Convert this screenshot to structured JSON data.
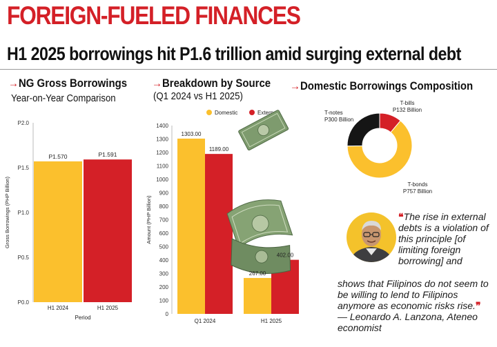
{
  "header": {
    "title": "FOREIGN-FUELED FINANCES",
    "subtitle": "H1 2025 borrowings hit P1.6 trillion amid surging external debt"
  },
  "colors": {
    "accent": "#d42027",
    "domestic": "#fbc02d",
    "external": "#d42027",
    "dark": "#151515"
  },
  "chart_data": [
    {
      "type": "bar",
      "title": "NG Gross Borrowings",
      "subtitle": "Year-on-Year Comparison",
      "arrow": "→",
      "categories": [
        "H1 2024",
        "H1 2025"
      ],
      "values": [
        1.57,
        1.591
      ],
      "data_labels": [
        "P1.570",
        "P1.591"
      ],
      "bar_colors": [
        "#fbc02d",
        "#d42027"
      ],
      "xlabel": "Period",
      "ylabel": "Gross Borrowings (PHP Billion)",
      "ylim": [
        0,
        2.0
      ],
      "yticks": [
        0,
        0.5,
        1.0,
        1.5,
        2.0
      ],
      "ytick_labels": [
        "P0.0",
        "P0.5",
        "P1.0",
        "P1.5",
        "P2.0"
      ]
    },
    {
      "type": "bar",
      "title": "Breakdown by Source",
      "subtitle": "(Q1 2024 vs H1 2025)",
      "arrow": "→",
      "categories": [
        "Q1 2024",
        "H1 2025"
      ],
      "series": [
        {
          "name": "Domestic",
          "values": [
            1303,
            267
          ],
          "labels": [
            "1303.00",
            "267.00"
          ]
        },
        {
          "name": "External",
          "values": [
            1189,
            402
          ],
          "labels": [
            "1189.00",
            "402.00"
          ]
        }
      ],
      "ylabel": "Amount (PHP Billion)",
      "ylim": [
        0,
        1400
      ],
      "yticks": [
        0,
        100,
        200,
        300,
        400,
        500,
        600,
        700,
        800,
        900,
        1000,
        1100,
        1200,
        1300,
        1400
      ],
      "ytick_labels": [
        "0",
        "100",
        "200",
        "300",
        "400",
        "500",
        "600",
        "700",
        "800",
        "900",
        "1000",
        "1100",
        "1200",
        "1300",
        "1400"
      ],
      "legend": "top"
    },
    {
      "type": "pie",
      "donut": true,
      "title": "Domestic Borrowings Composition",
      "arrow": "→",
      "slices": [
        {
          "name": "T-bills",
          "value": 132,
          "label_lines": [
            "T-bills",
            "P132 Billion"
          ],
          "color": "#d42027"
        },
        {
          "name": "T-bonds",
          "value": 757,
          "label_lines": [
            "T-bonds",
            "P757 Billion"
          ],
          "color": "#fbc02d"
        },
        {
          "name": "T-notes",
          "value": 300,
          "label_lines": [
            "T-notes",
            "P300 Billion"
          ],
          "color": "#151515"
        }
      ]
    }
  ],
  "quote": {
    "open_mark": "❝",
    "close_mark": "❞",
    "part1": "The rise in external debts is a violation of this principle [of limiting foreign borrowing] and",
    "part2": "shows that Filipinos do not seem to be willing to lend to Filipinos anymore as economic risks rise.",
    "attribution": "— Leonardo A. Lanzona, Ateneo economist"
  }
}
